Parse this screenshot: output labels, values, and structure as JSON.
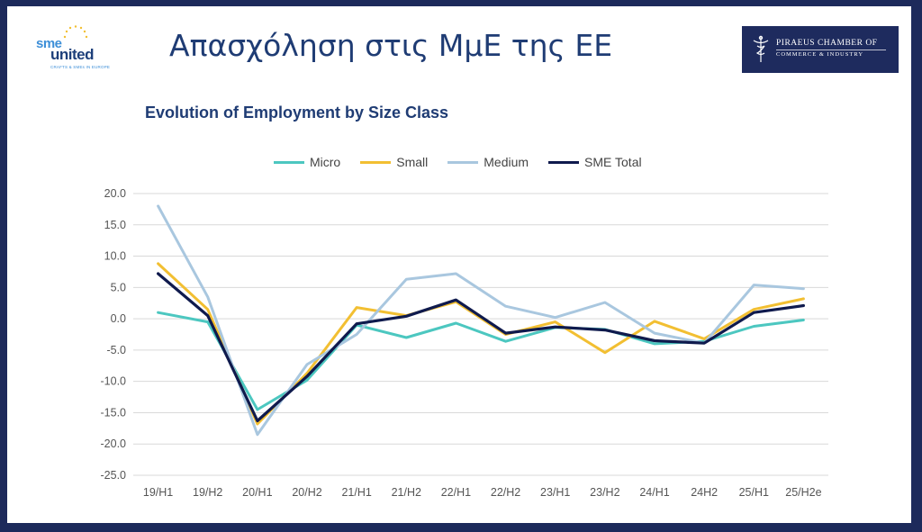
{
  "header": {
    "title": "Απασχόληση στις ΜμΕ της ΕΕ"
  },
  "logos": {
    "sme_united": {
      "word1": "sme",
      "word2": "united",
      "tagline": "CRAFTS & SMEs IN EUROPE"
    },
    "piraeus": {
      "line1": "PIRAEUS  CHAMBER OF",
      "line2": "COMMERCE & INDUSTRY"
    }
  },
  "colors": {
    "title": "#1f3c74",
    "piraeus_bg": "#1e2b5e",
    "frame": "#1d2a5b"
  },
  "chart_data": {
    "type": "line",
    "title": "Evolution of Employment by Size Class",
    "xlabel": "",
    "ylabel": "",
    "ylim": [
      -25,
      20
    ],
    "yticks": [
      "20.0",
      "15.0",
      "10.0",
      "5.0",
      "0.0",
      "-5.0",
      "-10.0",
      "-15.0",
      "-20.0",
      "-25.0"
    ],
    "ytick_values": [
      20,
      15,
      10,
      5,
      0,
      -5,
      -10,
      -15,
      -20,
      -25
    ],
    "grid": true,
    "legend_position": "top",
    "categories": [
      "19/H1",
      "19/H2",
      "20/H1",
      "20/H2",
      "21/H1",
      "21/H2",
      "22/H1",
      "22/H2",
      "23/H1",
      "23/H2",
      "24/H1",
      "24H2",
      "25/H1",
      "25/H2e"
    ],
    "series": [
      {
        "name": "Micro",
        "color": "#4cc7c0",
        "values": [
          1.0,
          -0.5,
          -14.5,
          -9.8,
          -1.0,
          -3.0,
          -0.7,
          -3.6,
          -1.4,
          -1.7,
          -4.0,
          -3.6,
          -1.2,
          -0.2
        ]
      },
      {
        "name": "Small",
        "color": "#f2bf32",
        "values": [
          8.8,
          1.5,
          -16.8,
          -8.7,
          1.8,
          0.5,
          2.7,
          -2.5,
          -0.5,
          -5.4,
          -0.4,
          -3.2,
          1.5,
          3.2
        ]
      },
      {
        "name": "Medium",
        "color": "#a9c7df",
        "values": [
          18.0,
          3.5,
          -18.5,
          -7.3,
          -2.5,
          6.3,
          7.2,
          2.0,
          0.2,
          2.6,
          -2.3,
          -3.9,
          5.4,
          4.8
        ]
      },
      {
        "name": "SME Total",
        "color": "#0f1a4d",
        "values": [
          7.2,
          0.5,
          -16.3,
          -9.2,
          -0.8,
          0.4,
          3.0,
          -2.3,
          -1.3,
          -1.8,
          -3.5,
          -3.9,
          1.0,
          2.1
        ]
      }
    ]
  }
}
